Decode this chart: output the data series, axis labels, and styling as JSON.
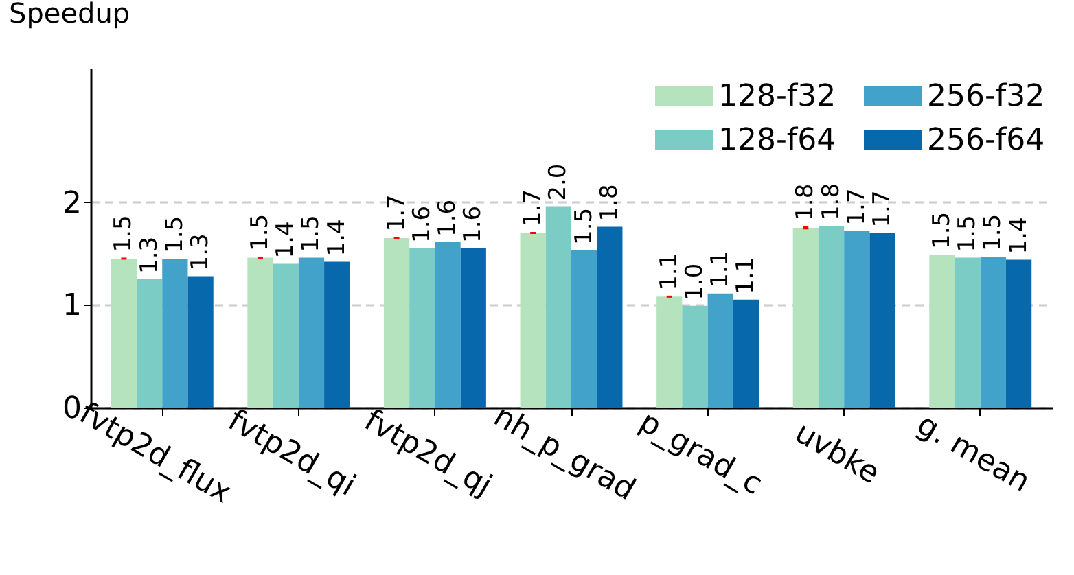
{
  "chart_data": {
    "type": "bar",
    "ylabel": "Speedup",
    "categories": [
      "fvtp2d_flux",
      "fvtp2d_qi",
      "fvtp2d_qj",
      "nh_p_grad",
      "p_grad_c",
      "uvbke",
      "g. mean"
    ],
    "series": [
      {
        "name": "128-f32",
        "color": "#b5e3bd",
        "values": [
          1.45,
          1.46,
          1.65,
          1.7,
          1.08,
          1.75,
          1.49
        ],
        "errors": [
          0.01,
          0.01,
          0.01,
          0.01,
          0.01,
          0.015,
          null
        ],
        "value_labels": [
          "1.5",
          "1.5",
          "1.7",
          "1.7",
          "1.1",
          "1.8",
          "1.5"
        ]
      },
      {
        "name": "128-f64",
        "color": "#7bccc4",
        "values": [
          1.25,
          1.4,
          1.55,
          1.96,
          0.99,
          1.77,
          1.46
        ],
        "value_labels": [
          "1.3",
          "1.4",
          "1.6",
          "2.0",
          "1.0",
          "1.8",
          "1.5"
        ]
      },
      {
        "name": "256-f32",
        "color": "#43a2ca",
        "values": [
          1.45,
          1.46,
          1.61,
          1.53,
          1.11,
          1.72,
          1.47
        ],
        "value_labels": [
          "1.5",
          "1.5",
          "1.6",
          "1.5",
          "1.1",
          "1.7",
          "1.5"
        ]
      },
      {
        "name": "256-f64",
        "color": "#0868ac",
        "values": [
          1.28,
          1.42,
          1.55,
          1.76,
          1.05,
          1.7,
          1.44
        ],
        "value_labels": [
          "1.3",
          "1.4",
          "1.6",
          "1.8",
          "1.1",
          "1.7",
          "1.4"
        ]
      }
    ],
    "ylim": [
      0,
      3.3
    ],
    "yticks": [
      0,
      1,
      2
    ],
    "grid": "y",
    "legend": "top right"
  }
}
